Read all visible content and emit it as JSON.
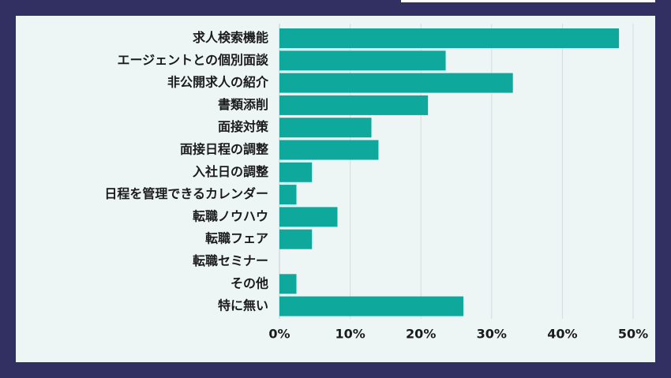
{
  "chart_data": {
    "type": "bar",
    "orientation": "horizontal",
    "categories": [
      "求人検索機能",
      "エージェントとの個別面談",
      "非公開求人の紹介",
      "書類添削",
      "面接対策",
      "面接日程の調整",
      "入社日の調整",
      "日程を管理できるカレンダー",
      "転職ノウハウ",
      "転職フェア",
      "転職セミナー",
      "その他",
      "特に無い"
    ],
    "values": [
      48,
      23.5,
      33,
      21,
      13,
      14,
      4.6,
      2.4,
      8.2,
      4.6,
      0,
      2.4,
      26
    ],
    "xlim": [
      0,
      50
    ],
    "xticks": [
      "0%",
      "10%",
      "20%",
      "30%",
      "40%",
      "50%"
    ],
    "title": "",
    "xlabel": "",
    "ylabel": "",
    "grid": true,
    "bar_color": "#0fa89c"
  }
}
